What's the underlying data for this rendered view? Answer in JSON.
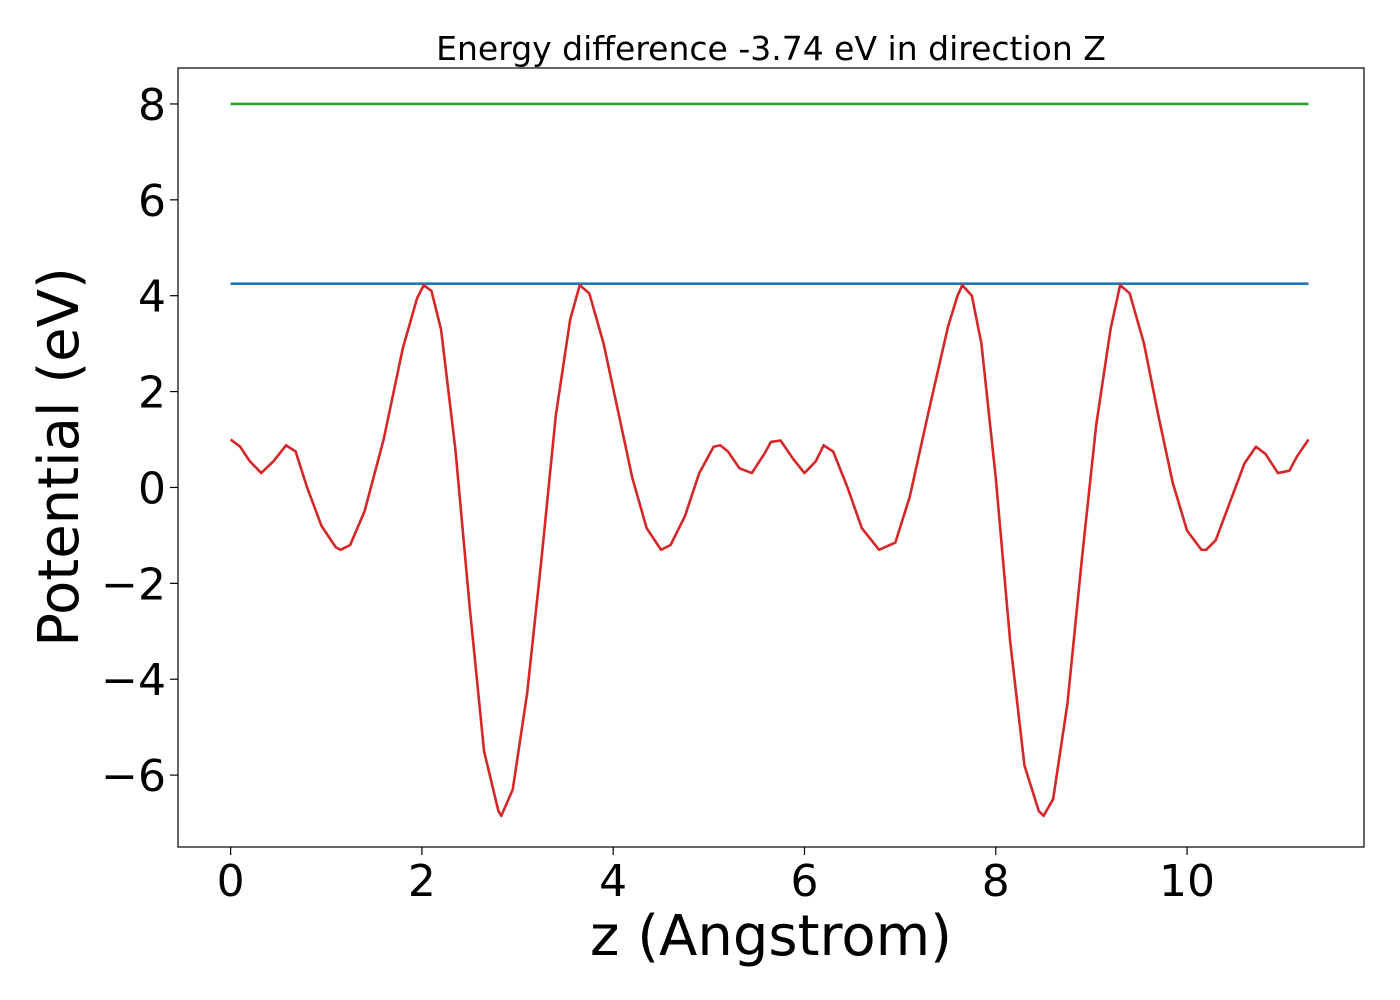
{
  "chart_data": {
    "type": "line",
    "title": "Energy difference -3.74 eV in direction Z",
    "xlabel": "z (Angstrom)",
    "ylabel": "Potential (eV)",
    "xlim": [
      -0.55,
      11.85
    ],
    "ylim": [
      -7.5,
      8.75
    ],
    "xticks": [
      0,
      2,
      4,
      6,
      8,
      10
    ],
    "xtick_labels": [
      "0",
      "2",
      "4",
      "6",
      "8",
      "10"
    ],
    "yticks": [
      -6,
      -4,
      -2,
      0,
      2,
      4,
      6,
      8
    ],
    "ytick_labels": [
      "−6",
      "−4",
      "−2",
      "0",
      "2",
      "4",
      "6",
      "8"
    ],
    "grid": false,
    "series": [
      {
        "color": "#2ca02c",
        "x": [
          0,
          11.27
        ],
        "y": [
          8.0,
          8.0
        ]
      },
      {
        "color": "#1f77b4",
        "x": [
          0,
          11.27
        ],
        "y": [
          4.25,
          4.25
        ]
      },
      {
        "color": "#d62728",
        "x": [
          0.0,
          0.1,
          0.2,
          0.32,
          0.45,
          0.58,
          0.68,
          0.8,
          0.95,
          1.1,
          1.15,
          1.25,
          1.4,
          1.6,
          1.8,
          1.95,
          2.02,
          2.1,
          2.2,
          2.35,
          2.5,
          2.65,
          2.8,
          2.83,
          2.95,
          3.1,
          3.25,
          3.4,
          3.55,
          3.65,
          3.75,
          3.9,
          4.05,
          4.2,
          4.35,
          4.5,
          4.6,
          4.75,
          4.9,
          5.05,
          5.12,
          5.2,
          5.32,
          5.45,
          5.58,
          5.65,
          5.75,
          5.88,
          6.0,
          6.12,
          6.2,
          6.3,
          6.45,
          6.6,
          6.78,
          6.95,
          7.1,
          7.3,
          7.5,
          7.6,
          7.65,
          7.75,
          7.85,
          8.0,
          8.15,
          8.3,
          8.45,
          8.5,
          8.6,
          8.75,
          8.9,
          9.05,
          9.2,
          9.3,
          9.4,
          9.55,
          9.7,
          9.85,
          10.0,
          10.15,
          10.2,
          10.3,
          10.45,
          10.6,
          10.72,
          10.82,
          10.95,
          11.07,
          11.15,
          11.27
        ],
        "y": [
          1.0,
          0.85,
          0.55,
          0.3,
          0.55,
          0.88,
          0.75,
          0.0,
          -0.8,
          -1.25,
          -1.3,
          -1.2,
          -0.5,
          1.0,
          2.9,
          3.95,
          4.22,
          4.1,
          3.3,
          0.8,
          -2.5,
          -5.5,
          -6.75,
          -6.85,
          -6.3,
          -4.3,
          -1.5,
          1.5,
          3.5,
          4.22,
          4.05,
          3.0,
          1.6,
          0.2,
          -0.85,
          -1.3,
          -1.2,
          -0.6,
          0.3,
          0.85,
          0.88,
          0.75,
          0.4,
          0.3,
          0.7,
          0.95,
          0.98,
          0.6,
          0.3,
          0.55,
          0.88,
          0.75,
          0.0,
          -0.85,
          -1.3,
          -1.15,
          -0.2,
          1.6,
          3.35,
          4.0,
          4.22,
          4.0,
          3.0,
          0.2,
          -3.2,
          -5.8,
          -6.75,
          -6.85,
          -6.5,
          -4.5,
          -1.5,
          1.3,
          3.3,
          4.22,
          4.05,
          3.0,
          1.5,
          0.1,
          -0.9,
          -1.3,
          -1.3,
          -1.1,
          -0.3,
          0.5,
          0.85,
          0.7,
          0.3,
          0.35,
          0.65,
          1.0
        ]
      }
    ]
  }
}
